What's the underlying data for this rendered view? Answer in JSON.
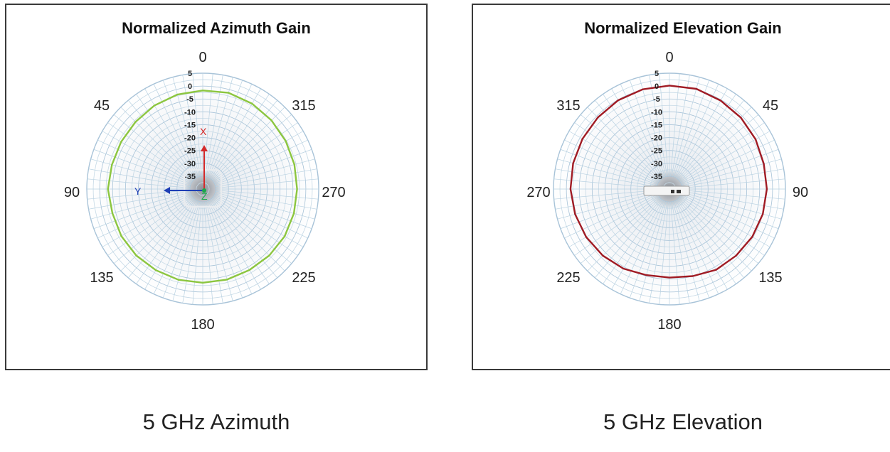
{
  "chart_data": [
    {
      "type": "polar-line",
      "title": "Normalized Azimuth Gain",
      "caption": "5 GHz Azimuth",
      "angle_labels": [
        {
          "text": "0",
          "pos": "top"
        },
        {
          "text": "315",
          "pos": "top-right"
        },
        {
          "text": "270",
          "pos": "right"
        },
        {
          "text": "225",
          "pos": "bottom-right"
        },
        {
          "text": "180",
          "pos": "bottom"
        },
        {
          "text": "135",
          "pos": "bottom-left"
        },
        {
          "text": "90",
          "pos": "left"
        },
        {
          "text": "45",
          "pos": "top-left"
        }
      ],
      "ring_labels": [
        "5",
        "0",
        "-5",
        "-10",
        "-15",
        "-20",
        "-25",
        "-30",
        "-35"
      ],
      "r_range": [
        -40,
        5
      ],
      "direction": "counterclockwise",
      "line_color": "#8cc63f",
      "axis_markers": {
        "x": "X",
        "y": "Y",
        "z": "Z"
      },
      "series": {
        "angles": [
          0,
          15,
          30,
          45,
          60,
          75,
          90,
          105,
          120,
          135,
          150,
          165,
          180,
          195,
          210,
          225,
          240,
          255,
          270,
          285,
          300,
          315,
          330,
          345
        ],
        "values": [
          -1.7,
          -2,
          -2.5,
          -3.1,
          -3.4,
          -3.5,
          -3.2,
          -3.7,
          -3.5,
          -3.5,
          -3.6,
          -3.5,
          -3.6,
          -3.6,
          -3.7,
          -3.5,
          -3.3,
          -3.4,
          -3.4,
          -3.2,
          -2.8,
          -2.3,
          -1.7,
          -1.3
        ]
      }
    },
    {
      "type": "polar-line",
      "title": "Normalized Elevation Gain",
      "caption": "5 GHz Elevation",
      "angle_labels": [
        {
          "text": "0",
          "pos": "top"
        },
        {
          "text": "45",
          "pos": "top-right"
        },
        {
          "text": "90",
          "pos": "right"
        },
        {
          "text": "135",
          "pos": "bottom-right"
        },
        {
          "text": "180",
          "pos": "bottom"
        },
        {
          "text": "225",
          "pos": "bottom-left"
        },
        {
          "text": "270",
          "pos": "left"
        },
        {
          "text": "315",
          "pos": "top-left"
        }
      ],
      "ring_labels": [
        "5",
        "0",
        "-5",
        "-10",
        "-15",
        "-20",
        "-25",
        "-30",
        "-35"
      ],
      "r_range": [
        -40,
        5
      ],
      "direction": "clockwise",
      "line_color": "#a01b24",
      "series": {
        "angles": [
          0,
          15,
          30,
          45,
          60,
          75,
          90,
          105,
          120,
          135,
          150,
          165,
          180,
          195,
          210,
          225,
          240,
          255,
          270,
          285,
          300,
          315,
          330,
          345
        ],
        "values": [
          0.2,
          0.3,
          -0.3,
          -0.8,
          -1.4,
          -2.1,
          -2.2,
          -2.5,
          -2.9,
          -3.4,
          -3.8,
          -5.0,
          -5.6,
          -5.4,
          -4.3,
          -3.4,
          -2.7,
          -2.1,
          -1.6,
          -1.3,
          -1.0,
          -0.7,
          -0.2,
          0.1
        ]
      }
    }
  ]
}
